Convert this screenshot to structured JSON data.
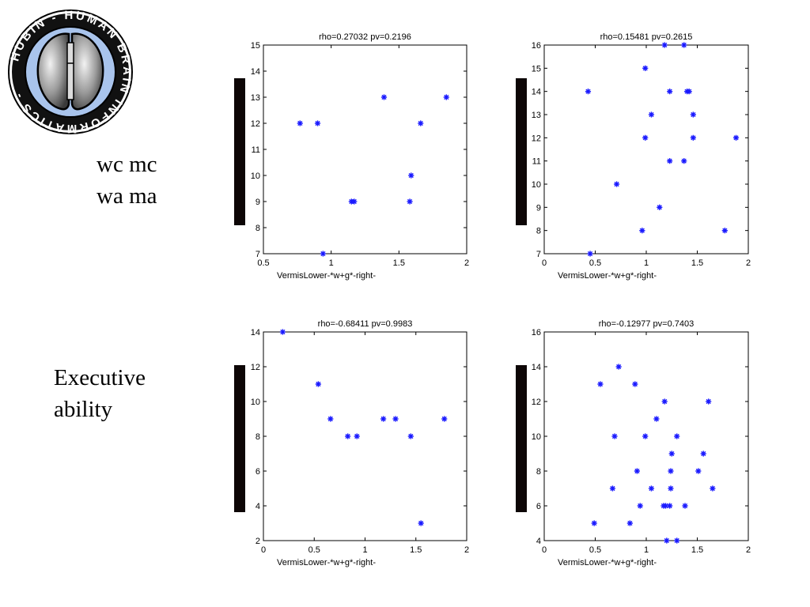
{
  "logo": {
    "ring_text": "HUBIN - HUMAN BRAIN INFORMATICS -",
    "colors": {
      "ring": "#a9c4ec",
      "brain": "#8a8a8a",
      "outline": "#000000"
    }
  },
  "row_labels": [
    {
      "lines": [
        "wc mc",
        "wa ma"
      ]
    },
    {
      "lines": [
        "Executive",
        "ability"
      ]
    }
  ],
  "marker_color": "#1a1aff",
  "bar_color": "#0d0606",
  "chart_data": [
    {
      "type": "scatter",
      "title": "rho=0.27032 pv=0.2196",
      "xlabel": "VermisLower-*w+g*-right-",
      "ylabel": "",
      "xlim": [
        0.5,
        2
      ],
      "ylim": [
        7,
        15
      ],
      "xticks": [
        "0.5",
        "1",
        "1.5",
        "2"
      ],
      "yticks": [
        "7",
        "8",
        "9",
        "10",
        "11",
        "12",
        "13",
        "14",
        "15"
      ],
      "x": [
        0.77,
        0.9,
        0.94,
        1.15,
        1.17,
        1.39,
        1.58,
        1.59,
        1.66,
        1.85
      ],
      "y": [
        12,
        12,
        7,
        9,
        9,
        13,
        9,
        10,
        12,
        13
      ]
    },
    {
      "type": "scatter",
      "title": "rho=0.15481 pv=0.2615",
      "xlabel": "VermisLower-*w+g*-right-",
      "ylabel": "",
      "xlim": [
        0,
        2
      ],
      "ylim": [
        7,
        16
      ],
      "xticks": [
        "0",
        "0.5",
        "1",
        "1.5",
        "2"
      ],
      "yticks": [
        "7",
        "8",
        "9",
        "10",
        "11",
        "12",
        "13",
        "14",
        "15",
        "16"
      ],
      "x": [
        0.43,
        0.45,
        0.71,
        0.96,
        0.99,
        0.99,
        1.05,
        1.13,
        1.18,
        1.23,
        1.23,
        1.37,
        1.37,
        1.4,
        1.42,
        1.46,
        1.46,
        1.77,
        1.88
      ],
      "y": [
        14,
        7,
        10,
        8,
        15,
        12,
        13,
        9,
        16,
        14,
        11,
        16,
        11,
        14,
        14,
        13,
        12,
        8,
        12
      ]
    },
    {
      "type": "scatter",
      "title": "rho=-0.68411 pv=0.9983",
      "xlabel": "VermisLower-*w+g*-right-",
      "ylabel": "",
      "xlim": [
        0,
        2
      ],
      "ylim": [
        2,
        14
      ],
      "xticks": [
        "0",
        "0.5",
        "1",
        "1.5",
        "2"
      ],
      "yticks": [
        "2",
        "4",
        "6",
        "8",
        "10",
        "12",
        "14"
      ],
      "x": [
        0.19,
        0.54,
        0.66,
        0.83,
        0.92,
        1.18,
        1.3,
        1.45,
        1.55,
        1.78
      ],
      "y": [
        14,
        11,
        9,
        8,
        8,
        9,
        9,
        8,
        3,
        9
      ]
    },
    {
      "type": "scatter",
      "title": "rho=-0.12977 pv=0.7403",
      "xlabel": "VermisLower-*w+g*-right-",
      "ylabel": "",
      "xlim": [
        0,
        2
      ],
      "ylim": [
        4,
        16
      ],
      "xticks": [
        "0",
        "0.5",
        "1",
        "1.5",
        "2"
      ],
      "yticks": [
        "4",
        "6",
        "8",
        "10",
        "12",
        "14",
        "16"
      ],
      "x": [
        0.49,
        0.55,
        0.67,
        0.69,
        0.73,
        0.84,
        0.89,
        0.91,
        0.94,
        0.99,
        1.05,
        1.1,
        1.17,
        1.18,
        1.19,
        1.2,
        1.23,
        1.24,
        1.24,
        1.25,
        1.3,
        1.3,
        1.38,
        1.51,
        1.56,
        1.61,
        1.65
      ],
      "y": [
        5,
        13,
        7,
        10,
        14,
        5,
        13,
        8,
        6,
        10,
        7,
        11,
        6,
        12,
        6,
        4,
        6,
        8,
        7,
        9,
        10,
        4,
        6,
        8,
        9,
        12,
        7
      ]
    }
  ]
}
